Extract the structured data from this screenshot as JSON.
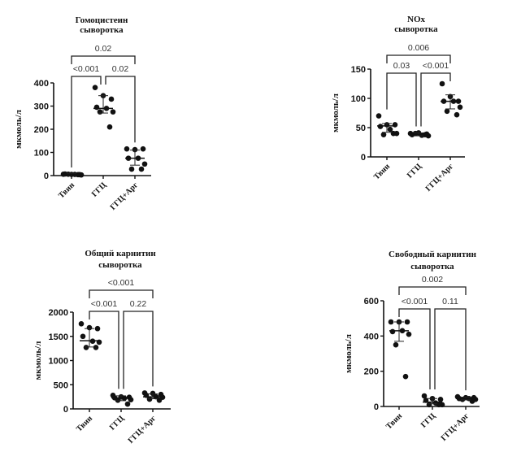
{
  "chart_data": [
    {
      "type": "scatter",
      "title": [
        "Гомоцистеин",
        "сыворотка"
      ],
      "ylabel": "мкмоль/л",
      "ylim": [
        0,
        400
      ],
      "yticks": [
        0,
        100,
        200,
        300,
        400
      ],
      "categories": [
        "Твин",
        "ГГЦ",
        "ГГЦ+Арг"
      ],
      "series": [
        {
          "name": "Твин",
          "values": [
            6,
            5,
            4,
            7,
            5,
            3,
            6,
            4
          ],
          "median": 5,
          "range": [
            3,
            8
          ]
        },
        {
          "name": "ГГЦ",
          "values": [
            380,
            345,
            330,
            295,
            290,
            275,
            275,
            210
          ],
          "median": 290,
          "range": [
            270,
            345
          ]
        },
        {
          "name": "ГГЦ+Арг",
          "values": [
            115,
            112,
            115,
            75,
            75,
            50,
            28,
            28
          ],
          "median": 75,
          "range": [
            45,
            110
          ]
        }
      ],
      "comparisons": [
        {
          "pair": [
            0,
            1
          ],
          "label": "<0.001",
          "level": 0
        },
        {
          "pair": [
            1,
            2
          ],
          "label": "0.02",
          "level": 0
        },
        {
          "pair": [
            0,
            2
          ],
          "label": "0.02",
          "level": 1
        }
      ]
    },
    {
      "type": "scatter",
      "title": [
        "NOx",
        "сыворотка"
      ],
      "ylabel": "мкмоль/л",
      "ylim": [
        0,
        150
      ],
      "yticks": [
        0,
        50,
        100,
        150
      ],
      "categories": [
        "Твин",
        "ГГЦ",
        "ГГЦ+Арг"
      ],
      "series": [
        {
          "name": "Твин",
          "values": [
            70,
            55,
            55,
            52,
            47,
            40,
            38,
            40
          ],
          "median": 53,
          "range": [
            42,
            57
          ]
        },
        {
          "name": "ГГЦ",
          "values": [
            40,
            41,
            39,
            38,
            37,
            36,
            40,
            38
          ],
          "median": 38,
          "range": [
            36,
            41
          ]
        },
        {
          "name": "ГГЦ+Арг",
          "values": [
            125,
            103,
            95,
            95,
            95,
            85,
            78,
            72
          ],
          "median": 95,
          "range": [
            82,
            106
          ]
        }
      ],
      "comparisons": [
        {
          "pair": [
            0,
            1
          ],
          "label": "0.03",
          "level": 0
        },
        {
          "pair": [
            1,
            2
          ],
          "label": "<0.001",
          "level": 0
        },
        {
          "pair": [
            0,
            2
          ],
          "label": "0.006",
          "level": 1
        }
      ]
    },
    {
      "type": "scatter",
      "title": [
        "Общий карнитин",
        "сыворотка"
      ],
      "ylabel": "мкмоль/л",
      "ylim": [
        0,
        2000
      ],
      "yticks": [
        0,
        500,
        1000,
        1500,
        2000
      ],
      "categories": [
        "Твин",
        "ГГЦ",
        "ГГЦ+Арг"
      ],
      "series": [
        {
          "name": "Твин",
          "values": [
            1760,
            1680,
            1660,
            1500,
            1400,
            1380,
            1270,
            1270
          ],
          "median": 1410,
          "range": [
            1280,
            1660
          ]
        },
        {
          "name": "ГГЦ",
          "values": [
            280,
            250,
            240,
            230,
            220,
            190,
            180,
            100
          ],
          "median": 230,
          "range": [
            170,
            270
          ]
        },
        {
          "name": "ГГЦ+Арг",
          "values": [
            330,
            320,
            300,
            280,
            250,
            240,
            200,
            180
          ],
          "median": 250,
          "range": [
            210,
            310
          ]
        }
      ],
      "comparisons": [
        {
          "pair": [
            0,
            1
          ],
          "label": "<0.001",
          "level": 0
        },
        {
          "pair": [
            1,
            2
          ],
          "label": "0.22",
          "level": 0
        },
        {
          "pair": [
            0,
            2
          ],
          "label": "<0.001",
          "level": 1
        }
      ]
    },
    {
      "type": "scatter",
      "title": [
        "Свободный карнитин",
        "сыворотка"
      ],
      "ylabel": "мкмоль/л",
      "ylim": [
        0,
        600
      ],
      "yticks": [
        0,
        200,
        400,
        600
      ],
      "categories": [
        "Твин",
        "ГГЦ",
        "ГГЦ+Арг"
      ],
      "series": [
        {
          "name": "Твин",
          "values": [
            480,
            480,
            480,
            425,
            430,
            410,
            350,
            170
          ],
          "median": 430,
          "range": [
            370,
            480
          ]
        },
        {
          "name": "ГГЦ",
          "values": [
            60,
            45,
            40,
            35,
            20,
            10,
            10,
            10
          ],
          "median": 25,
          "range": [
            15,
            45
          ]
        },
        {
          "name": "ГГЦ+Арг",
          "values": [
            55,
            50,
            50,
            45,
            45,
            40,
            40,
            30
          ],
          "median": 45,
          "range": [
            38,
            52
          ]
        }
      ],
      "comparisons": [
        {
          "pair": [
            0,
            1
          ],
          "label": "<0.001",
          "level": 0
        },
        {
          "pair": [
            1,
            2
          ],
          "label": "0.11",
          "level": 0
        },
        {
          "pair": [
            0,
            2
          ],
          "label": "0.002",
          "level": 1
        }
      ]
    }
  ]
}
